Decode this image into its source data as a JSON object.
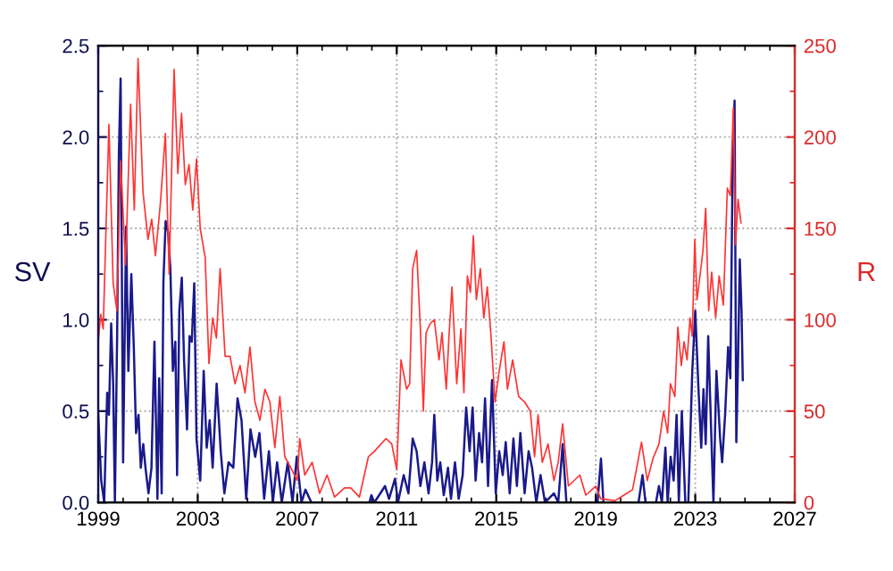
{
  "chart_data": {
    "type": "line",
    "ylabel": "SV",
    "y2label": "R",
    "xlim": [
      1999,
      2027
    ],
    "xticks": [
      1999,
      2003,
      2007,
      2011,
      2015,
      2019,
      2023,
      2027
    ],
    "ylim": [
      0,
      2.5
    ],
    "yticks": [
      {
        "value": 0,
        "label": "0.0"
      },
      {
        "value": 0.5,
        "label": "0.5"
      },
      {
        "value": 1,
        "label": "1.0"
      },
      {
        "value": 1.5,
        "label": "1.5"
      },
      {
        "value": 2,
        "label": "2.0"
      },
      {
        "value": 2.5,
        "label": "2.5"
      }
    ],
    "y2lim": [
      0,
      250
    ],
    "y2ticks": [
      0,
      50,
      100,
      150,
      200,
      250
    ],
    "grid": true,
    "line_style": "solid",
    "marker": "none",
    "series": [
      {
        "color": "#ff3333",
        "axis": "y2",
        "x": [
          1999.0,
          1999.1,
          1999.2,
          1999.43,
          1999.6,
          1999.75,
          1999.9,
          2000.1,
          2000.3,
          2000.45,
          2000.6,
          2000.8,
          2001.0,
          2001.15,
          2001.3,
          2001.5,
          2001.7,
          2001.85,
          2002.05,
          2002.2,
          2002.35,
          2002.5,
          2002.65,
          2002.8,
          2002.95,
          2003.1,
          2003.3,
          2003.45,
          2003.6,
          2003.75,
          2003.9,
          2004.1,
          2004.3,
          2004.5,
          2004.7,
          2004.9,
          2005.1,
          2005.3,
          2005.5,
          2005.7,
          2005.9,
          2006.1,
          2006.3,
          2006.5,
          2006.7,
          2007.0,
          2007.1,
          2007.3,
          2007.6,
          2007.9,
          2008.2,
          2008.5,
          2008.9,
          2009.15,
          2009.5,
          2009.86,
          2010.1,
          2010.57,
          2010.8,
          2011.0,
          2011.17,
          2011.4,
          2011.52,
          2011.64,
          2011.8,
          2011.95,
          2012.07,
          2012.18,
          2012.35,
          2012.51,
          2012.7,
          2012.82,
          2012.99,
          2013.1,
          2013.22,
          2013.41,
          2013.58,
          2013.7,
          2013.84,
          2013.96,
          2014.08,
          2014.2,
          2014.36,
          2014.5,
          2014.64,
          2014.79,
          2014.95,
          2015.12,
          2015.31,
          2015.45,
          2015.66,
          2015.9,
          2016.14,
          2016.37,
          2016.54,
          2016.68,
          2016.85,
          2017.08,
          2017.32,
          2017.49,
          2017.67,
          2017.9,
          2018.36,
          2018.6,
          2019.0,
          2019.2,
          2019.78,
          2020.13,
          2020.48,
          2020.84,
          2021.07,
          2021.3,
          2021.54,
          2021.73,
          2021.89,
          2022.0,
          2022.18,
          2022.3,
          2022.44,
          2022.55,
          2022.67,
          2022.79,
          2022.88,
          2022.98,
          2023.07,
          2023.19,
          2023.31,
          2023.42,
          2023.54,
          2023.66,
          2023.82,
          2023.96,
          2024.13,
          2024.29,
          2024.41,
          2024.53,
          2024.62,
          2024.72,
          2024.84
        ],
        "values": [
          88,
          103,
          95,
          207,
          120,
          105,
          187,
          130,
          218,
          160,
          243,
          170,
          144,
          155,
          135,
          164,
          202,
          125,
          237,
          180,
          213,
          174,
          185,
          160,
          188,
          150,
          134,
          76,
          101,
          90,
          128,
          80,
          80,
          65,
          75,
          60,
          85,
          55,
          45,
          62,
          55,
          30,
          58,
          25,
          20,
          12,
          35,
          15,
          22,
          5,
          15,
          3,
          8,
          8,
          3,
          25,
          28,
          35,
          32,
          18,
          78,
          62,
          65,
          128,
          138,
          95,
          50,
          93,
          98,
          100,
          78,
          93,
          62,
          91,
          118,
          65,
          95,
          60,
          124,
          115,
          146,
          111,
          128,
          101,
          118,
          91,
          55,
          72,
          88,
          62,
          78,
          58,
          55,
          50,
          25,
          48,
          22,
          32,
          12,
          22,
          43,
          9,
          15,
          4,
          9,
          2,
          1,
          4,
          7,
          33,
          12,
          24,
          32,
          50,
          38,
          65,
          58,
          96,
          75,
          88,
          78,
          101,
          91,
          144,
          111,
          124,
          138,
          161,
          105,
          126,
          101,
          124,
          108,
          172,
          168,
          216,
          141,
          166,
          153
        ]
      },
      {
        "color": "#1a1a8c",
        "x": [
          1999.0,
          1999.12,
          1999.24,
          1999.36,
          1999.43,
          1999.52,
          1999.6,
          1999.67,
          1999.76,
          1999.83,
          1999.9,
          2000.0,
          2000.12,
          2000.21,
          2000.33,
          2000.43,
          2000.52,
          2000.62,
          2000.71,
          2000.81,
          2000.9,
          2001.02,
          2001.14,
          2001.26,
          2001.38,
          2001.45,
          2001.55,
          2001.62,
          2001.71,
          2001.81,
          2001.9,
          2002.0,
          2002.1,
          2002.17,
          2002.26,
          2002.36,
          2002.45,
          2002.57,
          2002.67,
          2002.76,
          2002.86,
          2002.95,
          2003.1,
          2003.24,
          2003.36,
          2003.48,
          2003.6,
          2003.76,
          2003.93,
          2004.07,
          2004.24,
          2004.43,
          2004.6,
          2004.76,
          2004.95,
          2005.12,
          2005.31,
          2005.48,
          2005.67,
          2005.86,
          2006.02,
          2006.19,
          2006.38,
          2006.62,
          2006.81,
          2006.98,
          2007.17,
          2007.33,
          2007.57,
          2009.9,
          2009.98,
          2010.1,
          2010.53,
          2010.69,
          2010.93,
          2011.05,
          2011.28,
          2011.47,
          2011.64,
          2011.8,
          2011.95,
          2012.11,
          2012.28,
          2012.42,
          2012.51,
          2012.63,
          2012.75,
          2012.89,
          2013.06,
          2013.18,
          2013.34,
          2013.49,
          2013.65,
          2013.79,
          2013.93,
          2014.05,
          2014.17,
          2014.31,
          2014.43,
          2014.55,
          2014.67,
          2014.83,
          2014.98,
          2015.12,
          2015.26,
          2015.38,
          2015.54,
          2015.69,
          2015.83,
          2015.97,
          2016.14,
          2016.3,
          2016.44,
          2016.61,
          2016.78,
          2016.96,
          2017.32,
          2017.49,
          2017.67,
          2017.82,
          2019.07,
          2019.21,
          2019.31,
          2020.72,
          2020.88,
          2021.0,
          2021.42,
          2021.54,
          2021.66,
          2021.8,
          2021.89,
          2022.01,
          2022.13,
          2022.25,
          2022.34,
          2022.46,
          2022.6,
          2022.72,
          2022.88,
          2023.0,
          2023.12,
          2023.24,
          2023.33,
          2023.42,
          2023.52,
          2023.61,
          2023.73,
          2023.85,
          2024.0,
          2024.08,
          2024.2,
          2024.32,
          2024.41,
          2024.51,
          2024.58,
          2024.65,
          2024.72,
          2024.79,
          2024.86,
          2024.91
        ],
        "values": [
          0.48,
          0.12,
          0,
          0.6,
          0.48,
          0.98,
          0.65,
          0,
          0.91,
          1.91,
          2.32,
          0.22,
          1.51,
          0.72,
          1.25,
          0.85,
          0.38,
          0.48,
          0.19,
          0.32,
          0.19,
          0.05,
          0.19,
          0.88,
          0.02,
          0.68,
          0.05,
          1.21,
          1.54,
          1.48,
          1.28,
          0.72,
          0.88,
          0.15,
          1.05,
          1.23,
          0.78,
          0.4,
          0.91,
          0.88,
          1.2,
          0.35,
          0.12,
          0.72,
          0.3,
          0.45,
          0.19,
          0.65,
          0.27,
          0.05,
          0.22,
          0.19,
          0.57,
          0.45,
          0.02,
          0.4,
          0.25,
          0.38,
          0.02,
          0.28,
          0,
          0.22,
          0,
          0.22,
          0,
          0.25,
          0,
          0.07,
          0,
          0,
          0.04,
          0,
          0.09,
          0.02,
          0.13,
          0,
          0.15,
          0.05,
          0.35,
          0.28,
          0.09,
          0.22,
          0.05,
          0.22,
          0.48,
          0.12,
          0.22,
          0.04,
          0.19,
          0.02,
          0.22,
          0.02,
          0.15,
          0.52,
          0.28,
          0.52,
          0.12,
          0.38,
          0.22,
          0.57,
          0.09,
          0.67,
          0.05,
          0.28,
          0.15,
          0.33,
          0.05,
          0.35,
          0.09,
          0.38,
          0.05,
          0.28,
          0.19,
          0,
          0.15,
          0,
          0.05,
          0,
          0.32,
          0,
          0,
          0.24,
          0,
          0,
          0.15,
          0,
          0,
          0.09,
          0,
          0.3,
          0,
          0.25,
          0.12,
          0.48,
          0,
          0.5,
          0,
          0,
          0.72,
          1.05,
          0.65,
          0.3,
          0.62,
          0.32,
          0.91,
          0.52,
          0,
          0.72,
          0.35,
          0.22,
          0.48,
          0.85,
          0.68,
          1.94,
          2.2,
          0.33,
          0.78,
          1.33,
          1.05,
          0.67
        ]
      }
    ]
  }
}
